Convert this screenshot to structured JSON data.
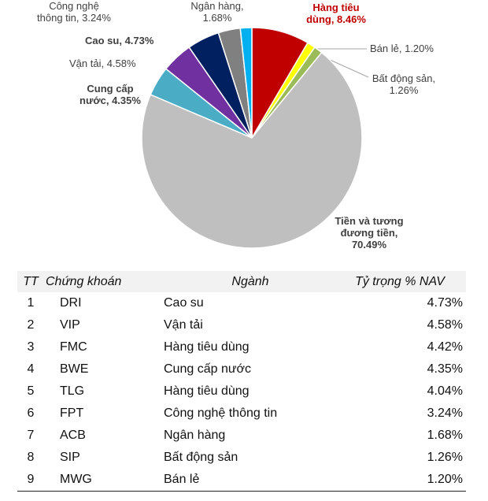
{
  "chart_data": {
    "type": "pie",
    "slices": [
      {
        "label_lines": [
          "Hàng tiêu",
          "dùng, 8.46%"
        ],
        "name": "Hàng tiêu dùng",
        "value": 8.46,
        "color": "#c00000",
        "bold": true,
        "text_color": "#c00000"
      },
      {
        "label_lines": [
          "Bán lẻ, 1.20%"
        ],
        "name": "Bán lẻ",
        "value": 1.2,
        "color": "#ffff00",
        "bold": false,
        "text_color": "#404040"
      },
      {
        "label_lines": [
          "Bất động sản,",
          "1.26%"
        ],
        "name": "Bất động sản",
        "value": 1.26,
        "color": "#9bbb59",
        "bold": false,
        "text_color": "#404040"
      },
      {
        "label_lines": [
          "Tiền và tương",
          "đương tiền,",
          "70.49%"
        ],
        "name": "Tiền và tương đương tiền",
        "value": 70.49,
        "color": "#bfbfbf",
        "bold": true,
        "text_color": "#404040"
      },
      {
        "label_lines": [
          "Cung cấp",
          "nước, 4.35%"
        ],
        "name": "Cung cấp nước",
        "value": 4.35,
        "color": "#4bacc6",
        "bold": true,
        "text_color": "#404040"
      },
      {
        "label_lines": [
          "Vận tải, 4.58%"
        ],
        "name": "Vận tải",
        "value": 4.58,
        "color": "#7030a0",
        "bold": false,
        "text_color": "#404040"
      },
      {
        "label_lines": [
          "Cao su, 4.73%"
        ],
        "name": "Cao su",
        "value": 4.73,
        "color": "#002060",
        "bold": true,
        "text_color": "#404040"
      },
      {
        "label_lines": [
          "Công nghệ",
          "thông tin, 3.24%"
        ],
        "name": "Công nghệ thông tin",
        "value": 3.24,
        "color": "#808080",
        "bold": false,
        "text_color": "#404040"
      },
      {
        "label_lines": [
          "Ngân hàng,",
          "1.68%"
        ],
        "name": "Ngân hàng",
        "value": 1.68,
        "color": "#00b0f0",
        "bold": false,
        "text_color": "#404040"
      }
    ]
  },
  "table": {
    "headers": [
      "TT",
      "Chứng khoán",
      "Ngành",
      "Tỷ trọng % NAV"
    ],
    "rows": [
      [
        "1",
        "DRI",
        "Cao su",
        "4.73%"
      ],
      [
        "2",
        "VIP",
        "Vận tải",
        "4.58%"
      ],
      [
        "3",
        "FMC",
        "Hàng tiêu dùng",
        "4.42%"
      ],
      [
        "4",
        "BWE",
        "Cung cấp nước",
        "4.35%"
      ],
      [
        "5",
        "TLG",
        "Hàng tiêu dùng",
        "4.04%"
      ],
      [
        "6",
        "FPT",
        "Công nghệ thông tin",
        "3.24%"
      ],
      [
        "7",
        "ACB",
        "Ngân hàng",
        "1.68%"
      ],
      [
        "8",
        "SIP",
        "Bất động sản",
        "1.26%"
      ],
      [
        "9",
        "MWG",
        "Bán lẻ",
        "1.20%"
      ]
    ]
  }
}
